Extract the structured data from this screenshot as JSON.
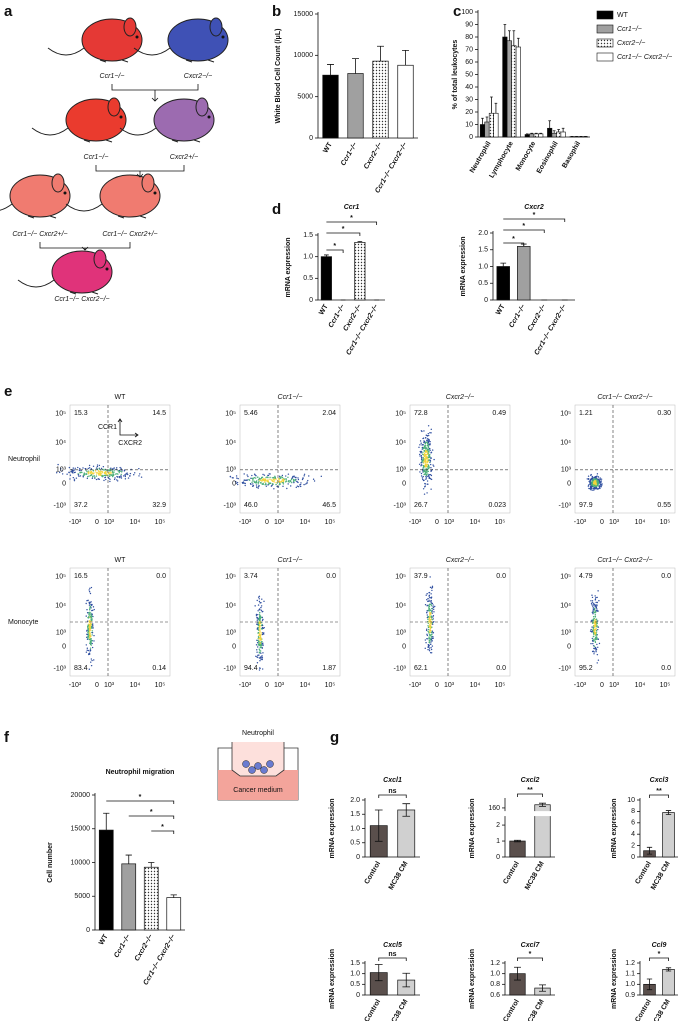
{
  "panels": [
    "a",
    "b",
    "c",
    "d",
    "e",
    "f",
    "g"
  ],
  "diagram_a": {
    "labels": [
      "Ccr1−/−",
      "Cxcr2−/−",
      "Ccr1−/−",
      "Cxcr2+/−",
      "Ccr1−/− Cxcr2+/−",
      "Ccr1−/− Cxcr2+/−",
      "Ccr1−/− Cxcr2−/−"
    ]
  },
  "flow": {
    "row_labels": [
      "Neutrophil",
      "Monocyte"
    ],
    "axis_labels": [
      "CCR1",
      "CXCR2"
    ],
    "tick_labels": [
      "-10³",
      "0",
      "10³",
      "10⁴",
      "10⁵"
    ],
    "plots": [
      {
        "title": "WT",
        "quadrants": [
          "15.3",
          "14.5",
          "37.2",
          "32.9"
        ]
      },
      {
        "title": "Ccr1−/−",
        "quadrants": [
          "5.46",
          "2.04",
          "46.0",
          "46.5"
        ]
      },
      {
        "title": "Cxcr2−/−",
        "quadrants": [
          "72.8",
          "0.49",
          "26.7",
          "0.023"
        ]
      },
      {
        "title": "Ccr1−/− Cxcr2−/−",
        "quadrants": [
          "1.21",
          "0.30",
          "97.9",
          "0.55"
        ]
      },
      {
        "title": "WT",
        "quadrants": [
          "16.5",
          "0.0",
          "83.4",
          "0.14"
        ]
      },
      {
        "title": "Ccr1−/−",
        "quadrants": [
          "3.74",
          "0.0",
          "94.4",
          "1.87"
        ]
      },
      {
        "title": "Cxcr2−/−",
        "quadrants": [
          "37.9",
          "0.0",
          "62.1",
          "0.0"
        ]
      },
      {
        "title": "Ccr1−/− Cxcr2−/−",
        "quadrants": [
          "4.79",
          "0.0",
          "95.2",
          "0.0"
        ]
      }
    ]
  },
  "diagram_f": {
    "labels": [
      "Neutrophil",
      "Cancer medium"
    ]
  },
  "chart_data": [
    {
      "type": "bar",
      "ylabel": "White Blood Cell Count (/μL)",
      "categories": [
        "WT",
        "Ccr1−/−",
        "Cxcr2−/−",
        "Ccr1−/− Cxcr2−/−"
      ],
      "values": [
        7600,
        7800,
        9300,
        8800
      ],
      "errors": [
        1300,
        1800,
        1800,
        1800
      ],
      "error_bars": "upper",
      "colors": [
        "#000000",
        "#a0a0a0",
        "dotted",
        "#ffffff"
      ],
      "ylim": [
        0,
        15000
      ],
      "yticks": [
        0,
        5000,
        10000,
        15000
      ]
    },
    {
      "type": "grouped-bar",
      "ylabel": "% of total leukocytes",
      "categories": [
        "Neutrophil",
        "Lymphocyte",
        "Monocyte",
        "Eosinophil",
        "Basophil"
      ],
      "error_bars": "upper",
      "legend": "upper right",
      "series": [
        {
          "name": "WT",
          "color": "#000000",
          "values": [
            10,
            80,
            2,
            7,
            0.3
          ],
          "errors": [
            5,
            10,
            0.5,
            6,
            0.2
          ]
        },
        {
          "name": "Ccr1−/−",
          "color": "#a0a0a0",
          "values": [
            12,
            77,
            2.5,
            3,
            0.3
          ],
          "errors": [
            4,
            8,
            0.5,
            2,
            0.2
          ]
        },
        {
          "name": "Cxcr2−/−",
          "color": "dotted",
          "values": [
            19,
            73,
            2.5,
            4,
            0.3
          ],
          "errors": [
            13,
            12,
            0.5,
            2,
            0.2
          ]
        },
        {
          "name": "Ccr1−/− Cxcr2−/−",
          "color": "#ffffff",
          "values": [
            19,
            72,
            2.5,
            4,
            0.3
          ],
          "errors": [
            8,
            7,
            0.5,
            3,
            0.2
          ]
        }
      ],
      "ylim": [
        0,
        100
      ],
      "yticks": [
        0,
        10,
        20,
        30,
        40,
        50,
        60,
        70,
        80,
        90,
        100
      ]
    },
    {
      "type": "bar",
      "title": "Ccr1",
      "ylabel": "mRNA expression",
      "categories": [
        "WT",
        "Ccr1−/−",
        "Cxcr2−/−",
        "Ccr1−/− Cxcr2−/−"
      ],
      "values": [
        1.0,
        0,
        1.33,
        0
      ],
      "errors": [
        0.04,
        0,
        0.02,
        0
      ],
      "error_bars": "upper",
      "colors": [
        "#000000",
        "#a0a0a0",
        "dotted",
        "#ffffff"
      ],
      "ylim": [
        0,
        1.5
      ],
      "yticks": [
        0,
        0.5,
        {
          "value": 1,
          "label": "1.0"
        },
        1.5
      ],
      "annotations": [
        "*",
        "*",
        "*"
      ]
    },
    {
      "type": "bar",
      "title": "Cxcr2",
      "ylabel": "mRNA expression",
      "categories": [
        "WT",
        "Ccr1−/−",
        "Cxcr2−/−",
        "Ccr1−/− Cxcr2−/−"
      ],
      "values": [
        1.0,
        1.6,
        0,
        0
      ],
      "errors": [
        0.1,
        0.07,
        0,
        0
      ],
      "error_bars": "upper",
      "colors": [
        "#000000",
        "#a0a0a0",
        "dotted",
        "#ffffff"
      ],
      "ylim": [
        0,
        2
      ],
      "yticks": [
        0,
        0.5,
        {
          "value": 1,
          "label": "1.0"
        },
        1.5,
        {
          "value": 2,
          "label": "2.0"
        }
      ],
      "annotations": [
        "*",
        "*",
        "*"
      ]
    },
    {
      "type": "bar",
      "title": "Neutrophil migration",
      "ylabel": "Cell number",
      "categories": [
        "WT",
        "Ccr1−/−",
        "Cxcr2−/−",
        "Ccr1−/− Cxcr2−/−"
      ],
      "values": [
        14800,
        9800,
        9300,
        4800
      ],
      "errors": [
        2500,
        1300,
        700,
        400
      ],
      "error_bars": "upper",
      "colors": [
        "#000000",
        "#a0a0a0",
        "dotted",
        "#ffffff"
      ],
      "ylim": [
        0,
        20000
      ],
      "yticks": [
        0,
        5000,
        10000,
        15000,
        20000
      ],
      "annotations": [
        "*",
        "*",
        "*"
      ]
    },
    {
      "type": "bar",
      "title": "Cxcl1",
      "ylabel": "mRNA expression",
      "categories": [
        "Control",
        "MC38 CM"
      ],
      "values": [
        1.1,
        1.65
      ],
      "errors": [
        0.55,
        0.22
      ],
      "error_bars": "both",
      "colors": [
        "#5a4f4c",
        "#d0d0d0"
      ],
      "ylim": [
        0,
        2
      ],
      "yticks": [
        0,
        0.5,
        {
          "value": 1,
          "label": "1.0"
        },
        1.5,
        {
          "value": 2,
          "label": "2.0"
        }
      ],
      "annotations": [
        "ns"
      ]
    },
    {
      "type": "bar",
      "title": "Cxcl2",
      "ylabel": "mRNA expression",
      "categories": [
        "Control",
        "MC38 CM"
      ],
      "values": [
        1.0,
        162
      ],
      "errors": [
        0.05,
        1
      ],
      "error_bars": "both",
      "colors": [
        "#5a4f4c",
        "#d0d0d0"
      ],
      "ylim": [
        0,
        165
      ],
      "ybreak": [
        2.5,
        158
      ],
      "yticks": [
        0,
        1,
        2,
        160
      ],
      "annotations": [
        "**"
      ]
    },
    {
      "type": "bar",
      "title": "Cxcl3",
      "ylabel": "mRNA expression",
      "categories": [
        "Control",
        "MC38 CM"
      ],
      "values": [
        1.1,
        7.8
      ],
      "errors": [
        0.6,
        0.35
      ],
      "error_bars": "both",
      "colors": [
        "#5a4f4c",
        "#d0d0d0"
      ],
      "ylim": [
        0,
        10
      ],
      "yticks": [
        0,
        2,
        4,
        6,
        8,
        10
      ],
      "annotations": [
        "**"
      ]
    },
    {
      "type": "bar",
      "title": "Cxcl5",
      "ylabel": "mRNA expression",
      "categories": [
        "Control",
        "MC38 CM"
      ],
      "values": [
        1.05,
        0.7
      ],
      "errors": [
        0.38,
        0.32
      ],
      "error_bars": "both",
      "colors": [
        "#5a4f4c",
        "#d0d0d0"
      ],
      "ylim": [
        0,
        1.5
      ],
      "yticks": [
        0,
        0.5,
        {
          "value": 1,
          "label": "1.0"
        },
        1.5
      ],
      "annotations": [
        "ns"
      ]
    },
    {
      "type": "bar",
      "title": "Cxcl7",
      "ylabel": "mRNA expression",
      "categories": [
        "Control",
        "MC38 CM"
      ],
      "values": [
        1.0,
        0.73
      ],
      "errors": [
        0.12,
        0.06
      ],
      "error_bars": "both",
      "colors": [
        "#5a4f4c",
        "#d0d0d0"
      ],
      "ylim": [
        0.6,
        1.2
      ],
      "yticks": [
        0.6,
        0.8,
        {
          "value": 1,
          "label": "1.0"
        },
        1.2
      ],
      "annotations": [
        "*"
      ]
    },
    {
      "type": "bar",
      "title": "Ccl9",
      "ylabel": "mRNA expression",
      "categories": [
        "Control",
        "MC38 CM"
      ],
      "values": [
        1.0,
        1.14
      ],
      "errors": [
        0.05,
        0.015
      ],
      "error_bars": "both",
      "colors": [
        "#5a4f4c",
        "#d0d0d0"
      ],
      "ylim": [
        0.9,
        1.2
      ],
      "yticks": [
        0.9,
        {
          "value": 1,
          "label": "1.0"
        },
        1.1,
        1.2
      ],
      "annotations": [
        "*"
      ]
    }
  ]
}
